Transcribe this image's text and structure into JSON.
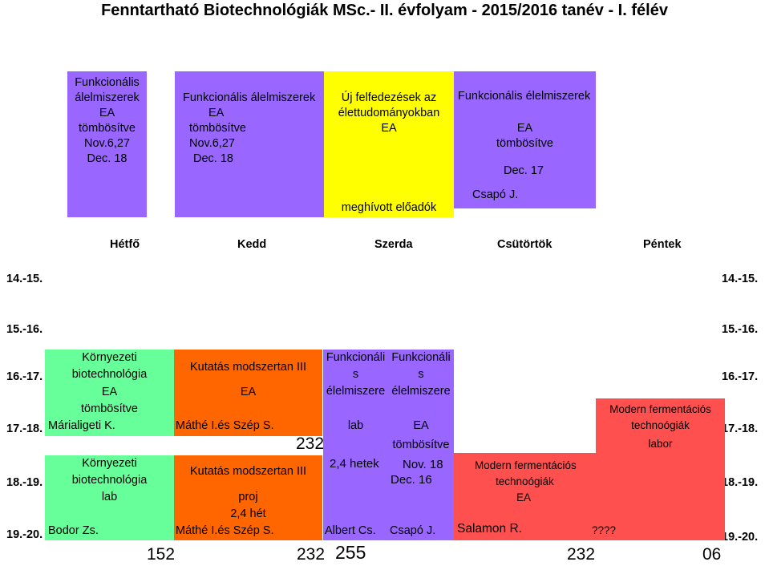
{
  "title": "Fenntartható Biotechnológiák MSc.- II. évfolyam - 2015/2016 tanév - I. félév",
  "top_blocks": {
    "b1": [
      "Funkcionális",
      "álelmiszerek",
      "EA",
      "tömbösítve",
      "Nov.6,27",
      "Dec. 18"
    ],
    "b2": [
      "Funkcionális álelmiszerek",
      "EA",
      "tömbösítve",
      "Nov.6,27",
      "Dec. 18"
    ],
    "b3": [
      "Új felfedezések az",
      "élettudományokban",
      "EA"
    ],
    "b3_footer": "meghívott előadók",
    "b4": [
      "Funkcionális élelmiszerek",
      "EA",
      "tömbösítve"
    ],
    "b4_date": "Dec. 17",
    "b4_footer": "Csapó J."
  },
  "days": [
    "Hétfő",
    "Kedd",
    "Szerda",
    "Csütörtök",
    "Péntek"
  ],
  "times": [
    "14.-15.",
    "15.-16.",
    "16.-17.",
    "17.-18.",
    "18.-19.",
    "19.-20."
  ],
  "blocks": {
    "g1": [
      "Környezeti",
      "biotechnológia",
      "EA",
      "tömbösítve"
    ],
    "g1_teacher": "Márialigeti K.",
    "g2": [
      "Környezeti",
      "biotechnológia",
      "lab"
    ],
    "g2_teacher": "Bodor Zs.",
    "o1": [
      "Kutatás modszertan III",
      "EA"
    ],
    "o1_teacher": "Máthé I.és Szép S.",
    "o2": [
      "Kutatás modszertan III",
      "proj",
      "2,4 hét"
    ],
    "o2_teacher": "Máthé I.és Szép S.",
    "p1": [
      "Funkcionáli",
      "s",
      "élelmiszere",
      "lab",
      "2,4 hetek"
    ],
    "p1_teacher": "Albert Cs.",
    "p2": [
      "Funkcionáli",
      "s",
      "élelmiszere",
      "EA",
      "tömbösítve",
      "Nov. 18",
      "Dec. 16"
    ],
    "p2_teacher": "Csapó J.",
    "r1": [
      "Modern fermentációs",
      "technoógiák",
      "labor"
    ],
    "r2": [
      "Modern fermentációs",
      "technoógiák",
      "EA"
    ],
    "r2_teacher": "Salamon R.",
    "r2_extra": "????"
  },
  "rooms": {
    "mid": "232",
    "a": "152",
    "b": "232",
    "c": "255",
    "d": "232",
    "e": "06"
  },
  "colors": {
    "purple": "#9966ff",
    "yellow": "#ffff00",
    "green": "#66ff99",
    "orange": "#ff6600",
    "red": "#ff5050"
  }
}
